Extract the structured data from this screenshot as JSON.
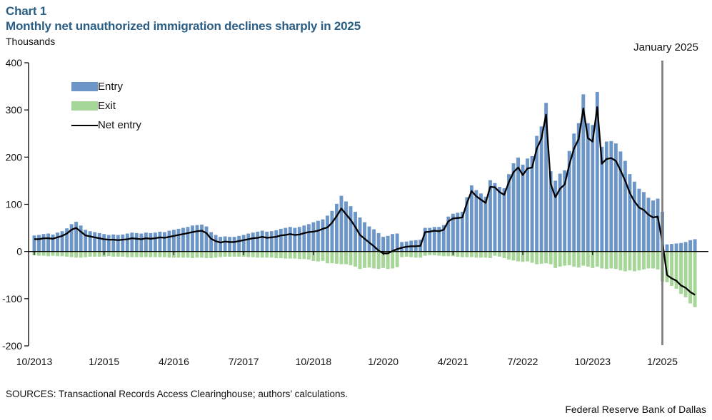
{
  "header": {
    "chart_label": "Chart 1",
    "title": "Monthly net unauthorized immigration declines sharply in 2025",
    "y_unit_label": "Thousands"
  },
  "annotation": {
    "label": "January 2025"
  },
  "legend": [
    {
      "label": "Entry",
      "type": "bar",
      "color": "#6D96C8"
    },
    {
      "label": "Exit",
      "type": "bar",
      "color": "#A6D698"
    },
    {
      "label": "Net entry",
      "type": "line",
      "color": "#000000"
    }
  ],
  "footer": {
    "sources": "SOURCES: Transactional Records Access Clearinghouse; authors’ calculations.",
    "attribution": "Federal Reserve Bank of Dallas"
  },
  "chart_data": {
    "type": "bar",
    "subtype": "bar-and-line-combo",
    "title": "Monthly net unauthorized immigration declines sharply in 2025",
    "ylabel": "Thousands",
    "grid": false,
    "legend_position": "upper-left-inside",
    "y_axis": {
      "min": -200,
      "max": 400,
      "ticks": [
        400,
        300,
        200,
        100,
        0,
        -100,
        -200
      ]
    },
    "x_axis": {
      "tick_labels": [
        "10/2013",
        "1/2015",
        "4/2016",
        "7/2017",
        "10/2018",
        "1/2020",
        "4/2021",
        "7/2022",
        "10/2023",
        "1/2025"
      ]
    },
    "annotation": {
      "text": "January 2025",
      "x": "1/2025",
      "line_color": "#7F7F7F"
    },
    "categories": [
      "10/2013",
      "11/2013",
      "12/2013",
      "1/2014",
      "2/2014",
      "3/2014",
      "4/2014",
      "5/2014",
      "6/2014",
      "7/2014",
      "8/2014",
      "9/2014",
      "10/2014",
      "11/2014",
      "12/2014",
      "1/2015",
      "2/2015",
      "3/2015",
      "4/2015",
      "5/2015",
      "6/2015",
      "7/2015",
      "8/2015",
      "9/2015",
      "10/2015",
      "11/2015",
      "12/2015",
      "1/2016",
      "2/2016",
      "3/2016",
      "4/2016",
      "5/2016",
      "6/2016",
      "7/2016",
      "8/2016",
      "9/2016",
      "10/2016",
      "11/2016",
      "12/2016",
      "1/2017",
      "2/2017",
      "3/2017",
      "4/2017",
      "5/2017",
      "6/2017",
      "7/2017",
      "8/2017",
      "9/2017",
      "10/2017",
      "11/2017",
      "12/2017",
      "1/2018",
      "2/2018",
      "3/2018",
      "4/2018",
      "5/2018",
      "6/2018",
      "7/2018",
      "8/2018",
      "9/2018",
      "10/2018",
      "11/2018",
      "12/2018",
      "1/2019",
      "2/2019",
      "3/2019",
      "4/2019",
      "5/2019",
      "6/2019",
      "7/2019",
      "8/2019",
      "9/2019",
      "10/2019",
      "11/2019",
      "12/2019",
      "1/2020",
      "2/2020",
      "3/2020",
      "4/2020",
      "5/2020",
      "6/2020",
      "7/2020",
      "8/2020",
      "9/2020",
      "10/2020",
      "11/2020",
      "12/2020",
      "1/2021",
      "2/2021",
      "3/2021",
      "4/2021",
      "5/2021",
      "6/2021",
      "7/2021",
      "8/2021",
      "9/2021",
      "10/2021",
      "11/2021",
      "12/2021",
      "1/2022",
      "2/2022",
      "3/2022",
      "4/2022",
      "5/2022",
      "6/2022",
      "7/2022",
      "8/2022",
      "9/2022",
      "10/2022",
      "11/2022",
      "12/2022",
      "1/2023",
      "2/2023",
      "3/2023",
      "4/2023",
      "5/2023",
      "6/2023",
      "7/2023",
      "8/2023",
      "9/2023",
      "10/2023",
      "11/2023",
      "12/2023",
      "1/2024",
      "2/2024",
      "3/2024",
      "4/2024",
      "5/2024",
      "6/2024",
      "7/2024",
      "8/2024",
      "9/2024",
      "10/2024",
      "11/2024",
      "12/2024",
      "1/2025",
      "2/2025",
      "3/2025",
      "4/2025",
      "5/2025",
      "6/2025",
      "7/2025",
      "8/2025"
    ],
    "series": [
      {
        "name": "Entry",
        "type": "bar",
        "color": "#6D96C8",
        "values": [
          34,
          35,
          37,
          38,
          36,
          40,
          43,
          49,
          58,
          63,
          55,
          46,
          43,
          41,
          39,
          37,
          35,
          36,
          35,
          36,
          38,
          40,
          39,
          38,
          40,
          39,
          40,
          42,
          41,
          44,
          46,
          48,
          50,
          52,
          55,
          56,
          57,
          53,
          41,
          35,
          31,
          32,
          31,
          31,
          33,
          35,
          38,
          40,
          42,
          44,
          42,
          43,
          45,
          48,
          50,
          52,
          50,
          52,
          55,
          58,
          62,
          65,
          68,
          76,
          86,
          101,
          118,
          106,
          96,
          84,
          72,
          62,
          53,
          47,
          39,
          31,
          33,
          37,
          38,
          20,
          21,
          23,
          24,
          25,
          50,
          50,
          52,
          52,
          56,
          74,
          80,
          82,
          84,
          115,
          140,
          130,
          123,
          116,
          151,
          145,
          137,
          134,
          164,
          187,
          199,
          184,
          197,
          202,
          245,
          265,
          315,
          170,
          150,
          165,
          172,
          213,
          250,
          272,
          333,
          272,
          268,
          338,
          222,
          233,
          234,
          229,
          212,
          192,
          164,
          148,
          133,
          126,
          114,
          108,
          112,
          84,
          15,
          16,
          17,
          18,
          20,
          24,
          26
        ]
      },
      {
        "name": "Exit",
        "type": "bar",
        "color": "#A6D698",
        "values": [
          -8,
          -9,
          -9,
          -10,
          -9,
          -10,
          -10,
          -11,
          -12,
          -13,
          -13,
          -12,
          -11,
          -11,
          -11,
          -11,
          -10,
          -11,
          -11,
          -11,
          -12,
          -12,
          -12,
          -12,
          -12,
          -12,
          -12,
          -12,
          -12,
          -13,
          -13,
          -13,
          -13,
          -13,
          -14,
          -13,
          -13,
          -14,
          -14,
          -13,
          -12,
          -11,
          -11,
          -11,
          -11,
          -11,
          -12,
          -12,
          -13,
          -13,
          -13,
          -13,
          -14,
          -14,
          -15,
          -15,
          -15,
          -16,
          -16,
          -17,
          -20,
          -21,
          -20,
          -25,
          -25,
          -26,
          -27,
          -27,
          -29,
          -32,
          -37,
          -35,
          -34,
          -36,
          -37,
          -35,
          -37,
          -36,
          -33,
          -12,
          -11,
          -12,
          -13,
          -13,
          -9,
          -8,
          -8,
          -9,
          -10,
          -10,
          -10,
          -11,
          -12,
          -12,
          -12,
          -13,
          -13,
          -13,
          -14,
          -9,
          -11,
          -14,
          -17,
          -19,
          -21,
          -22,
          -21,
          -24,
          -27,
          -26,
          -25,
          -27,
          -35,
          -32,
          -30,
          -29,
          -32,
          -34,
          -30,
          -32,
          -35,
          -32,
          -36,
          -37,
          -36,
          -37,
          -40,
          -42,
          -40,
          -42,
          -40,
          -38,
          -36,
          -36,
          -38,
          -64,
          -65,
          -73,
          -79,
          -90,
          -97,
          -110,
          -118
        ]
      },
      {
        "name": "Net entry",
        "type": "line",
        "color": "#000000",
        "values": [
          26,
          26,
          28,
          28,
          27,
          30,
          33,
          38,
          46,
          50,
          42,
          34,
          32,
          30,
          28,
          26,
          25,
          25,
          24,
          25,
          26,
          28,
          27,
          26,
          28,
          27,
          28,
          30,
          29,
          31,
          33,
          35,
          37,
          39,
          41,
          43,
          44,
          39,
          27,
          22,
          19,
          21,
          20,
          20,
          22,
          24,
          26,
          28,
          29,
          31,
          29,
          30,
          31,
          34,
          35,
          37,
          35,
          36,
          39,
          41,
          42,
          44,
          48,
          51,
          61,
          75,
          91,
          79,
          67,
          52,
          35,
          27,
          19,
          11,
          2,
          -4,
          -4,
          1,
          5,
          8,
          10,
          11,
          11,
          12,
          41,
          42,
          44,
          43,
          46,
          64,
          70,
          71,
          72,
          103,
          128,
          117,
          110,
          103,
          137,
          136,
          126,
          120,
          147,
          168,
          178,
          162,
          176,
          178,
          218,
          239,
          290,
          143,
          115,
          133,
          142,
          184,
          218,
          238,
          303,
          240,
          233,
          306,
          186,
          196,
          198,
          192,
          172,
          150,
          124,
          106,
          93,
          88,
          78,
          72,
          74,
          20,
          -50,
          -57,
          -62,
          -72,
          -77,
          -86,
          -92
        ]
      }
    ]
  }
}
